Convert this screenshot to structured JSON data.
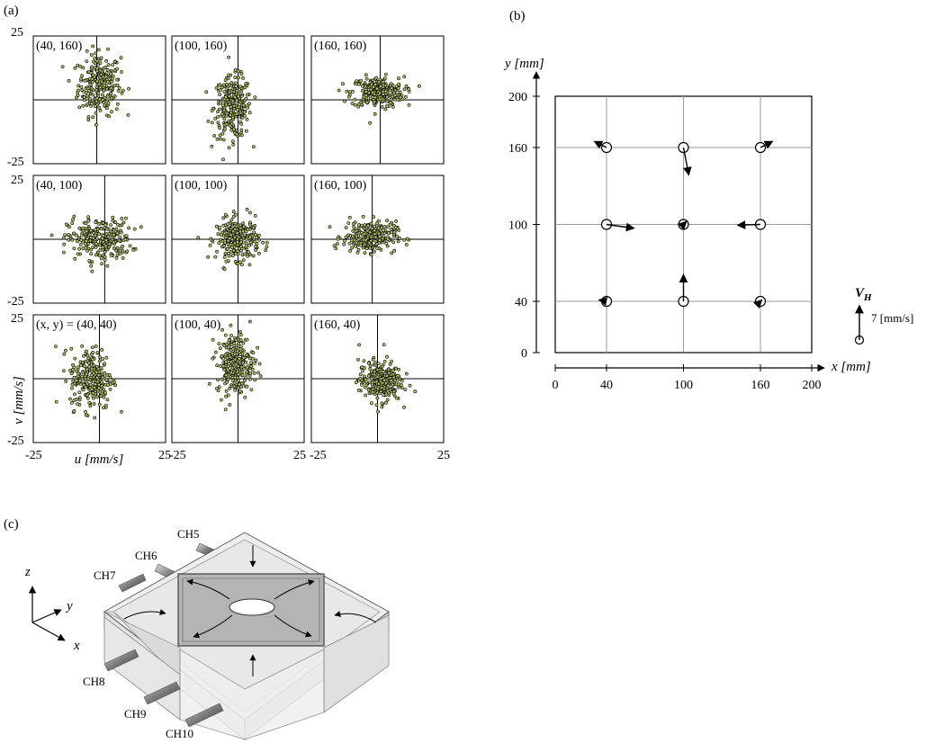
{
  "panel_a": {
    "label": "(a)",
    "subplots": [
      {
        "label": "(40, 160)",
        "cx": 0,
        "cy": 6,
        "sx": 4,
        "sy": 6,
        "dx": -1,
        "dy": 0
      },
      {
        "label": "(100, 160)",
        "cx": -2,
        "cy": -3,
        "sx": 3.5,
        "sy": 6,
        "dx": 0,
        "dy": 0
      },
      {
        "label": "(160, 160)",
        "cx": 0,
        "cy": 3,
        "sx": 5,
        "sy": 3,
        "dx": 1,
        "dy": 0
      },
      {
        "label": "(40, 100)",
        "cx": 0,
        "cy": 0,
        "sx": 6,
        "sy": 4,
        "dx": 2,
        "dy": 0
      },
      {
        "label": "(100, 100)",
        "cx": 0,
        "cy": 0,
        "sx": 4,
        "sy": 4,
        "dx": 0,
        "dy": 0
      },
      {
        "label": "(160, 100)",
        "cx": -3,
        "cy": 1,
        "sx": 5,
        "sy": 3,
        "dx": -2,
        "dy": 0
      },
      {
        "label": "(x, y) = (40, 40)",
        "cx": -3,
        "cy": 0,
        "sx": 4,
        "sy": 6,
        "dx": 0,
        "dy": 0
      },
      {
        "label": "(100, 40)",
        "cx": -1,
        "cy": 6,
        "sx": 3.5,
        "sy": 6,
        "dx": 0,
        "dy": 0
      },
      {
        "label": "(160, 40)",
        "cx": 1,
        "cy": -1,
        "sx": 4,
        "sy": 4,
        "dx": 0,
        "dy": 0
      }
    ],
    "tick_top": "25",
    "tick_bottom": "-25",
    "tick_left": "-25",
    "tick_right": "25",
    "ylabel": "v [mm/s]",
    "xlabel": "u [mm/s]"
  },
  "panel_b": {
    "label": "(b)",
    "ylabel": "y [mm]",
    "xlabel": "x [mm]",
    "yticks": [
      "200",
      "160",
      "100",
      "40",
      "0"
    ],
    "xticks": [
      "0",
      "40",
      "100",
      "160",
      "200"
    ],
    "vectors": [
      {
        "x": 40,
        "y": 160,
        "u": -1.6,
        "v": 0.8
      },
      {
        "x": 100,
        "y": 160,
        "u": 0.7,
        "v": -3.6
      },
      {
        "x": 160,
        "y": 160,
        "u": 1.6,
        "v": 0.8
      },
      {
        "x": 40,
        "y": 100,
        "u": 3.6,
        "v": -0.5
      },
      {
        "x": 100,
        "y": 100,
        "u": 0.4,
        "v": 0.4
      },
      {
        "x": 160,
        "y": 100,
        "u": -3.0,
        "v": -0.1
      },
      {
        "x": 40,
        "y": 40,
        "u": -1.0,
        "v": 0.2
      },
      {
        "x": 100,
        "y": 40,
        "u": 0.0,
        "v": 3.5
      },
      {
        "x": 160,
        "y": 40,
        "u": 0.2,
        "v": 0.2
      }
    ],
    "legend_label": "V",
    "legend_sub": "H",
    "legend_value": "7 [mm/s]",
    "legend_vector_value": 7
  },
  "panel_c": {
    "label": "(c)",
    "channels": [
      "CH5",
      "CH6",
      "CH7",
      "CH8",
      "CH9",
      "CH10"
    ],
    "axes": {
      "z": "z",
      "y": "y",
      "x": "x"
    },
    "colors": {
      "outer_face": "#e8e8e8",
      "center_face": "#b4b4b4",
      "edge": "#555555"
    }
  }
}
